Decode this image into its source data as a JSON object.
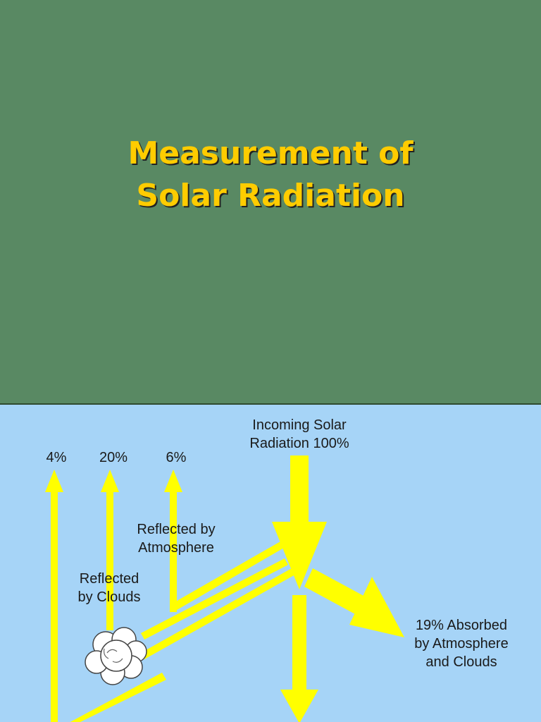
{
  "slide": {
    "title_line1": "Measurement of",
    "title_line2": "Solar Radiation",
    "title_color": "#ffcc00",
    "background_color": "#598963"
  },
  "diagram": {
    "background_color": "#a6d4f7",
    "arrow_color": "#ffff00",
    "labels": {
      "incoming": "Incoming Solar\nRadiation 100%",
      "pct_4": "4%",
      "pct_20": "20%",
      "pct_6": "6%",
      "reflected_atmosphere": "Reflected by\nAtmosphere",
      "reflected_clouds": "Reflected\nby Clouds",
      "absorbed": "19% Absorbed\nby Atmosphere\nand Clouds"
    },
    "icons": [
      "cloud-icon"
    ]
  }
}
